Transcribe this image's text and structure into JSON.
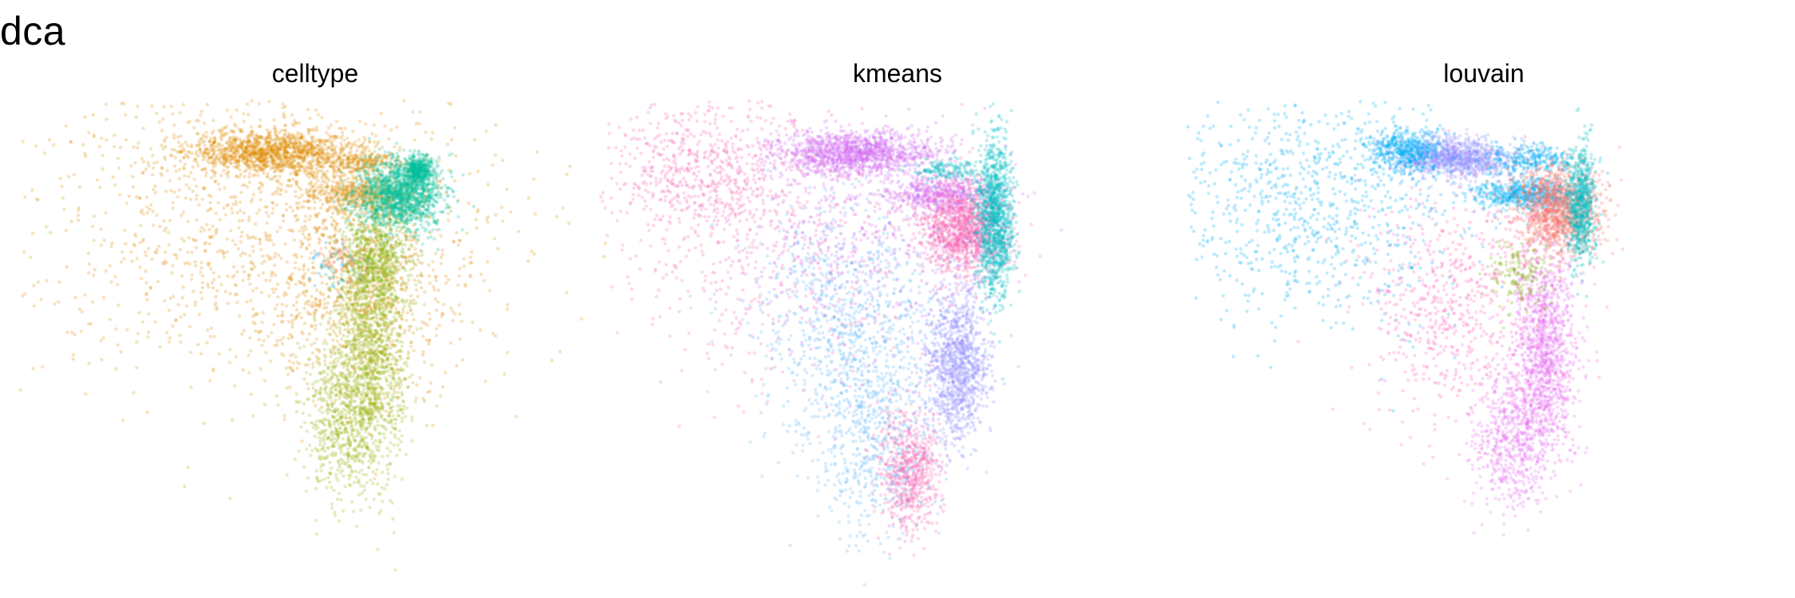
{
  "figure": {
    "title": "dca"
  },
  "chart_data": [
    {
      "type": "scatter",
      "title": "celltype",
      "xlabel": "",
      "ylabel": "",
      "axes_visible": false,
      "grid": false,
      "legend": "none",
      "point_alpha": 0.25,
      "series": [
        {
          "color": "#DE8C00",
          "clusters": [
            {
              "cx": 0.43,
              "cy": 0.115,
              "sx": 0.07,
              "sy": 0.022,
              "n": 1300
            },
            {
              "cx": 0.42,
              "cy": 0.26,
              "sx": 0.2,
              "sy": 0.17,
              "n": 1300
            },
            {
              "cx": 0.59,
              "cy": 0.135,
              "sx": 0.035,
              "sy": 0.012,
              "n": 220
            },
            {
              "cx": 0.57,
              "cy": 0.2,
              "sx": 0.05,
              "sy": 0.018,
              "n": 500
            },
            {
              "cx": 0.57,
              "cy": 0.38,
              "sx": 0.08,
              "sy": 0.1,
              "n": 700
            }
          ]
        },
        {
          "color": "#00BE9A",
          "clusters": [
            {
              "cx": 0.64,
              "cy": 0.2,
              "sx": 0.035,
              "sy": 0.035,
              "n": 1400
            },
            {
              "cx": 0.67,
              "cy": 0.15,
              "sx": 0.012,
              "sy": 0.015,
              "n": 400
            }
          ]
        },
        {
          "color": "#9CB50F",
          "clusters": [
            {
              "cx": 0.59,
              "cy": 0.52,
              "sx": 0.03,
              "sy": 0.12,
              "n": 1500
            },
            {
              "cx": 0.54,
              "cy": 0.66,
              "sx": 0.03,
              "sy": 0.08,
              "n": 500
            }
          ]
        },
        {
          "color": "#7CAE00",
          "clusters": [
            {
              "cx": 0.6,
              "cy": 0.33,
              "sx": 0.03,
              "sy": 0.05,
              "n": 500
            }
          ]
        },
        {
          "color": "#F8766D",
          "clusters": [
            {
              "cx": 0.55,
              "cy": 0.33,
              "sx": 0.02,
              "sy": 0.02,
              "n": 60
            }
          ]
        },
        {
          "color": "#00B0F6",
          "clusters": [
            {
              "cx": 0.53,
              "cy": 0.34,
              "sx": 0.025,
              "sy": 0.025,
              "n": 40
            }
          ]
        }
      ]
    },
    {
      "type": "scatter",
      "title": "kmeans",
      "xlabel": "",
      "ylabel": "",
      "axes_visible": false,
      "grid": false,
      "legend": "none",
      "point_alpha": 0.25,
      "series": [
        {
          "color": "#D56BF2",
          "clusters": [
            {
              "cx": 0.43,
              "cy": 0.115,
              "sx": 0.065,
              "sy": 0.022,
              "n": 1300
            },
            {
              "cx": 0.57,
              "cy": 0.2,
              "sx": 0.045,
              "sy": 0.018,
              "n": 500
            },
            {
              "cx": 0.44,
              "cy": 0.28,
              "sx": 0.12,
              "sy": 0.12,
              "n": 500
            }
          ]
        },
        {
          "color": "#F767B4",
          "clusters": [
            {
              "cx": 0.18,
              "cy": 0.15,
              "sx": 0.08,
              "sy": 0.07,
              "n": 600
            },
            {
              "cx": 0.3,
              "cy": 0.3,
              "sx": 0.15,
              "sy": 0.15,
              "n": 500
            },
            {
              "cx": 0.61,
              "cy": 0.27,
              "sx": 0.035,
              "sy": 0.045,
              "n": 1300
            },
            {
              "cx": 0.52,
              "cy": 0.76,
              "sx": 0.025,
              "sy": 0.06,
              "n": 700
            }
          ]
        },
        {
          "color": "#62B6F6",
          "clusters": [
            {
              "cx": 0.42,
              "cy": 0.46,
              "sx": 0.08,
              "sy": 0.12,
              "n": 900
            },
            {
              "cx": 0.46,
              "cy": 0.7,
              "sx": 0.05,
              "sy": 0.1,
              "n": 500
            }
          ]
        },
        {
          "color": "#00BFC4",
          "clusters": [
            {
              "cx": 0.66,
              "cy": 0.25,
              "sx": 0.015,
              "sy": 0.08,
              "n": 1200
            },
            {
              "cx": 0.58,
              "cy": 0.15,
              "sx": 0.03,
              "sy": 0.01,
              "n": 150
            }
          ]
        },
        {
          "color": "#9590FF",
          "clusters": [
            {
              "cx": 0.6,
              "cy": 0.54,
              "sx": 0.025,
              "sy": 0.08,
              "n": 1100
            }
          ]
        }
      ]
    },
    {
      "type": "scatter",
      "title": "louvain",
      "xlabel": "",
      "ylabel": "",
      "axes_visible": false,
      "grid": false,
      "legend": "none",
      "point_alpha": 0.25,
      "series": [
        {
          "color": "#9590FF",
          "clusters": [
            {
              "cx": 0.45,
              "cy": 0.125,
              "sx": 0.05,
              "sy": 0.02,
              "n": 1000
            }
          ]
        },
        {
          "color": "#00B0F6",
          "clusters": [
            {
              "cx": 0.37,
              "cy": 0.11,
              "sx": 0.03,
              "sy": 0.022,
              "n": 500
            },
            {
              "cx": 0.22,
              "cy": 0.22,
              "sx": 0.12,
              "sy": 0.12,
              "n": 900
            },
            {
              "cx": 0.58,
              "cy": 0.13,
              "sx": 0.04,
              "sy": 0.015,
              "n": 300
            },
            {
              "cx": 0.57,
              "cy": 0.2,
              "sx": 0.04,
              "sy": 0.015,
              "n": 600
            }
          ]
        },
        {
          "color": "#F8766D",
          "clusters": [
            {
              "cx": 0.62,
              "cy": 0.23,
              "sx": 0.035,
              "sy": 0.045,
              "n": 1300
            }
          ]
        },
        {
          "color": "#00BFC4",
          "clusters": [
            {
              "cx": 0.66,
              "cy": 0.22,
              "sx": 0.012,
              "sy": 0.06,
              "n": 700
            }
          ]
        },
        {
          "color": "#E76BF3",
          "clusters": [
            {
              "cx": 0.6,
              "cy": 0.52,
              "sx": 0.025,
              "sy": 0.1,
              "n": 1100
            },
            {
              "cx": 0.55,
              "cy": 0.69,
              "sx": 0.035,
              "sy": 0.07,
              "n": 600
            }
          ]
        },
        {
          "color": "#FF62BC",
          "clusters": [
            {
              "cx": 0.46,
              "cy": 0.42,
              "sx": 0.08,
              "sy": 0.12,
              "n": 700
            }
          ]
        },
        {
          "color": "#7CAE00",
          "clusters": [
            {
              "cx": 0.56,
              "cy": 0.36,
              "sx": 0.025,
              "sy": 0.035,
              "n": 150
            }
          ]
        }
      ]
    }
  ]
}
